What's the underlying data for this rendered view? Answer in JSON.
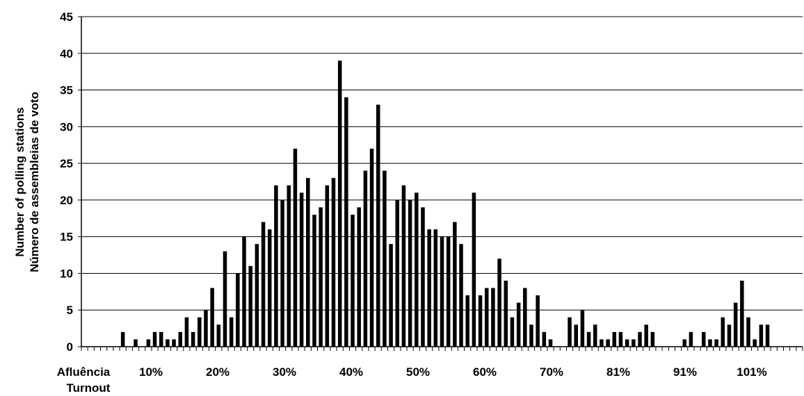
{
  "chart_data": {
    "type": "bar",
    "ylabel": [
      "Number of polling stations",
      "Número de assembleias de voto"
    ],
    "xlabel": [
      "Afluência",
      "Turnout"
    ],
    "ylim": [
      0,
      45
    ],
    "yticks": [
      "0",
      "5",
      "10",
      "15",
      "20",
      "25",
      "30",
      "35",
      "40",
      "45"
    ],
    "xtick_labels": [
      "10%",
      "20%",
      "30%",
      "40%",
      "50%",
      "60%",
      "70%",
      "81%",
      "91%",
      "101%"
    ],
    "grid": true,
    "values": [
      0,
      0,
      0,
      0,
      0,
      0,
      2,
      0,
      1,
      0,
      1,
      2,
      2,
      1,
      1,
      2,
      4,
      2,
      4,
      5,
      8,
      3,
      13,
      4,
      10,
      15,
      11,
      14,
      17,
      16,
      22,
      20,
      22,
      27,
      21,
      23,
      18,
      19,
      22,
      23,
      39,
      34,
      18,
      19,
      24,
      27,
      33,
      24,
      14,
      20,
      22,
      20,
      21,
      19,
      16,
      16,
      15,
      15,
      17,
      14,
      7,
      21,
      7,
      8,
      8,
      12,
      9,
      4,
      6,
      8,
      3,
      7,
      2,
      1,
      0,
      0,
      4,
      3,
      5,
      2,
      3,
      1,
      1,
      2,
      2,
      1,
      1,
      2,
      3,
      2,
      0,
      0,
      0,
      0,
      1,
      2,
      0,
      2,
      1,
      1,
      4,
      3,
      6,
      9,
      4,
      1,
      3,
      3,
      0,
      0,
      0,
      0,
      0
    ]
  }
}
